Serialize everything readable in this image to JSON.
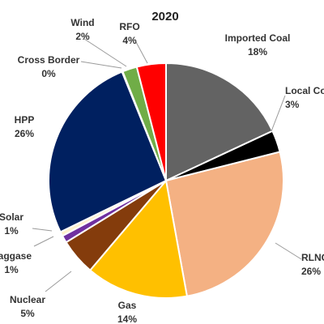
{
  "chart_data": {
    "type": "pie",
    "title": "2020",
    "slices": [
      {
        "name": "Imported Coal",
        "label": "18%",
        "value": 18,
        "color": "#636363"
      },
      {
        "name": "Local Coal",
        "label": "3%",
        "value": 3,
        "color": "#000000"
      },
      {
        "name": "RLNG",
        "label": "26%",
        "value": 26,
        "color": "#f4b183"
      },
      {
        "name": "Gas",
        "label": "14%",
        "value": 14,
        "color": "#ffc000"
      },
      {
        "name": "Nuclear",
        "label": "5%",
        "value": 5,
        "color": "#843c0c"
      },
      {
        "name": "Baggase",
        "label": "1%",
        "value": 1,
        "color": "#7030a0"
      },
      {
        "name": "Solar",
        "label": "1%",
        "value": 0.6,
        "color": "#fff2cc"
      },
      {
        "name": "HPP",
        "label": "26%",
        "value": 26,
        "color": "#002060"
      },
      {
        "name": "Cross Border",
        "label": "0%",
        "value": 0.1,
        "color": "#5b9bd5"
      },
      {
        "name": "Wind",
        "label": "2%",
        "value": 2,
        "color": "#70ad47"
      },
      {
        "name": "RFO",
        "label": "4%",
        "value": 4,
        "color": "#ff0000"
      }
    ]
  }
}
